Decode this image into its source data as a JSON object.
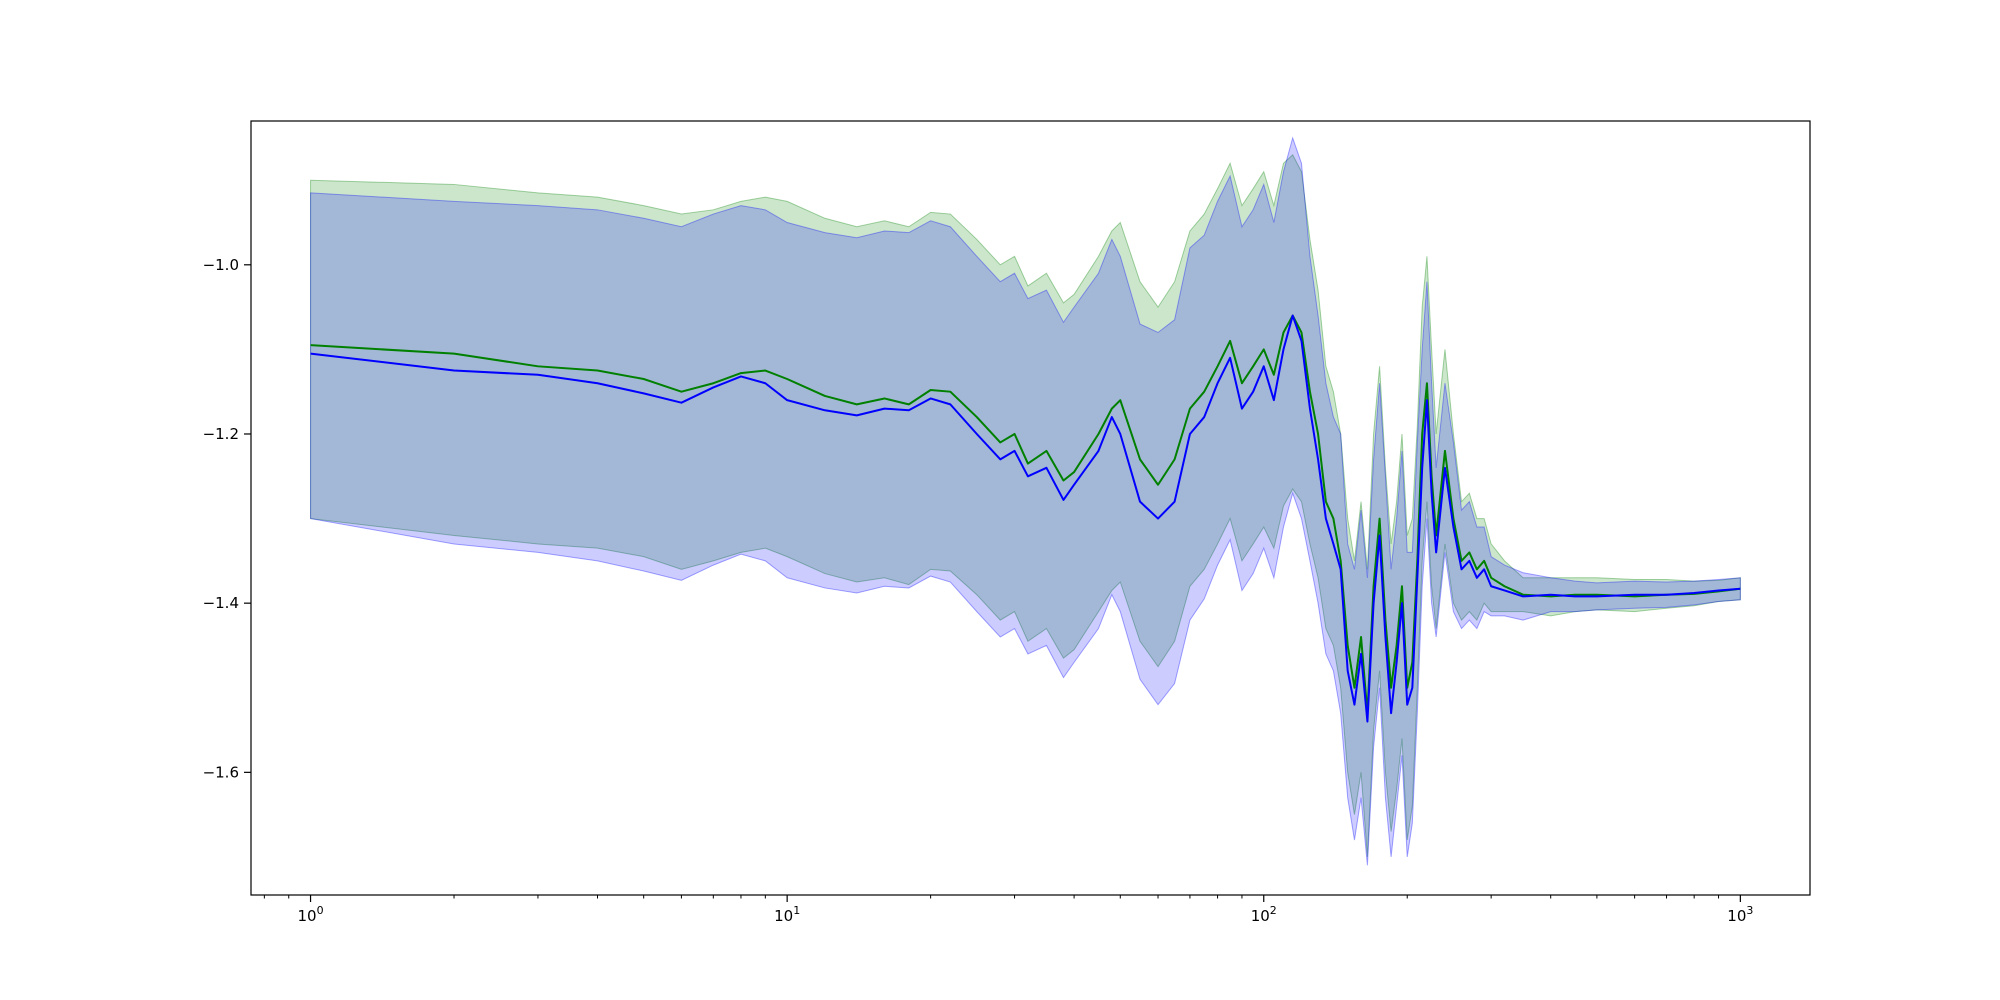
{
  "chart_data": {
    "type": "line",
    "title": "",
    "xlabel": "",
    "ylabel": "",
    "xscale": "log",
    "xlim": [
      0.75,
      1400
    ],
    "ylim": [
      -1.745,
      -0.83
    ],
    "grid": false,
    "legend": "none",
    "x_ticks": [
      {
        "base": "10",
        "exp": "0",
        "value": 1
      },
      {
        "base": "10",
        "exp": "1",
        "value": 10
      },
      {
        "base": "10",
        "exp": "2",
        "value": 100
      },
      {
        "base": "10",
        "exp": "3",
        "value": 1000
      }
    ],
    "y_ticks": [
      {
        "label": "−1.0",
        "value": -1.0
      },
      {
        "label": "−1.2",
        "value": -1.2
      },
      {
        "label": "−1.4",
        "value": -1.4
      },
      {
        "label": "−1.6",
        "value": -1.6
      }
    ],
    "series": [
      {
        "color": "#008000",
        "band_color": "#008000",
        "band_opacity": 0.2,
        "x": [
          1,
          2,
          3,
          4,
          5,
          6,
          7,
          8,
          9,
          10,
          12,
          14,
          16,
          18,
          20,
          22,
          25,
          28,
          30,
          32,
          35,
          38,
          40,
          45,
          48,
          50,
          55,
          60,
          65,
          70,
          75,
          80,
          85,
          90,
          95,
          100,
          105,
          110,
          115,
          120,
          125,
          130,
          135,
          140,
          145,
          150,
          155,
          160,
          165,
          170,
          175,
          180,
          185,
          190,
          195,
          200,
          205,
          210,
          215,
          220,
          225,
          230,
          240,
          250,
          260,
          270,
          280,
          290,
          300,
          320,
          350,
          400,
          450,
          500,
          600,
          700,
          800,
          900,
          1000
        ],
        "y": [
          -1.095,
          -1.105,
          -1.12,
          -1.125,
          -1.135,
          -1.15,
          -1.14,
          -1.128,
          -1.125,
          -1.135,
          -1.155,
          -1.165,
          -1.158,
          -1.165,
          -1.148,
          -1.15,
          -1.18,
          -1.21,
          -1.2,
          -1.235,
          -1.22,
          -1.255,
          -1.245,
          -1.2,
          -1.17,
          -1.16,
          -1.23,
          -1.26,
          -1.23,
          -1.17,
          -1.15,
          -1.12,
          -1.09,
          -1.14,
          -1.12,
          -1.1,
          -1.13,
          -1.08,
          -1.06,
          -1.08,
          -1.15,
          -1.2,
          -1.28,
          -1.3,
          -1.35,
          -1.45,
          -1.5,
          -1.44,
          -1.53,
          -1.38,
          -1.3,
          -1.42,
          -1.5,
          -1.45,
          -1.38,
          -1.5,
          -1.47,
          -1.35,
          -1.2,
          -1.14,
          -1.25,
          -1.32,
          -1.22,
          -1.3,
          -1.35,
          -1.34,
          -1.36,
          -1.35,
          -1.37,
          -1.38,
          -1.39,
          -1.392,
          -1.39,
          -1.39,
          -1.392,
          -1.39,
          -1.389,
          -1.386,
          -1.383
        ],
        "lower": [
          -1.3,
          -1.32,
          -1.33,
          -1.335,
          -1.345,
          -1.36,
          -1.35,
          -1.34,
          -1.335,
          -1.345,
          -1.365,
          -1.375,
          -1.37,
          -1.378,
          -1.36,
          -1.362,
          -1.39,
          -1.42,
          -1.41,
          -1.445,
          -1.43,
          -1.465,
          -1.455,
          -1.41,
          -1.385,
          -1.375,
          -1.445,
          -1.475,
          -1.445,
          -1.38,
          -1.36,
          -1.33,
          -1.3,
          -1.35,
          -1.33,
          -1.31,
          -1.335,
          -1.285,
          -1.265,
          -1.28,
          -1.33,
          -1.37,
          -1.43,
          -1.45,
          -1.5,
          -1.6,
          -1.65,
          -1.6,
          -1.7,
          -1.55,
          -1.48,
          -1.6,
          -1.67,
          -1.62,
          -1.56,
          -1.68,
          -1.64,
          -1.5,
          -1.35,
          -1.28,
          -1.38,
          -1.43,
          -1.33,
          -1.4,
          -1.42,
          -1.41,
          -1.42,
          -1.4,
          -1.41,
          -1.41,
          -1.41,
          -1.415,
          -1.41,
          -1.408,
          -1.41,
          -1.406,
          -1.403,
          -1.398,
          -1.396
        ],
        "upper": [
          -0.9,
          -0.905,
          -0.915,
          -0.92,
          -0.93,
          -0.94,
          -0.935,
          -0.925,
          -0.92,
          -0.925,
          -0.945,
          -0.955,
          -0.948,
          -0.955,
          -0.938,
          -0.94,
          -0.97,
          -1.0,
          -0.99,
          -1.025,
          -1.01,
          -1.045,
          -1.035,
          -0.99,
          -0.96,
          -0.95,
          -1.02,
          -1.05,
          -1.02,
          -0.96,
          -0.94,
          -0.91,
          -0.88,
          -0.93,
          -0.91,
          -0.89,
          -0.93,
          -0.88,
          -0.87,
          -0.89,
          -0.97,
          -1.03,
          -1.12,
          -1.15,
          -1.2,
          -1.3,
          -1.35,
          -1.28,
          -1.36,
          -1.2,
          -1.12,
          -1.24,
          -1.33,
          -1.28,
          -1.2,
          -1.32,
          -1.3,
          -1.19,
          -1.05,
          -0.99,
          -1.1,
          -1.2,
          -1.1,
          -1.2,
          -1.28,
          -1.27,
          -1.3,
          -1.3,
          -1.33,
          -1.35,
          -1.37,
          -1.37,
          -1.37,
          -1.37,
          -1.372,
          -1.372,
          -1.374,
          -1.373,
          -1.37
        ]
      },
      {
        "color": "#0000ff",
        "band_color": "#0000ff",
        "band_opacity": 0.2,
        "x": [
          1,
          2,
          3,
          4,
          5,
          6,
          7,
          8,
          9,
          10,
          12,
          14,
          16,
          18,
          20,
          22,
          25,
          28,
          30,
          32,
          35,
          38,
          40,
          45,
          48,
          50,
          55,
          60,
          65,
          70,
          75,
          80,
          85,
          90,
          95,
          100,
          105,
          110,
          115,
          120,
          125,
          130,
          135,
          140,
          145,
          150,
          155,
          160,
          165,
          170,
          175,
          180,
          185,
          190,
          195,
          200,
          205,
          210,
          215,
          220,
          225,
          230,
          240,
          250,
          260,
          270,
          280,
          290,
          300,
          320,
          350,
          400,
          450,
          500,
          600,
          700,
          800,
          900,
          1000
        ],
        "y": [
          -1.105,
          -1.125,
          -1.13,
          -1.14,
          -1.152,
          -1.163,
          -1.145,
          -1.132,
          -1.14,
          -1.16,
          -1.172,
          -1.178,
          -1.17,
          -1.172,
          -1.158,
          -1.165,
          -1.2,
          -1.23,
          -1.22,
          -1.25,
          -1.24,
          -1.278,
          -1.26,
          -1.22,
          -1.18,
          -1.2,
          -1.28,
          -1.3,
          -1.28,
          -1.2,
          -1.18,
          -1.14,
          -1.11,
          -1.17,
          -1.15,
          -1.12,
          -1.16,
          -1.1,
          -1.06,
          -1.09,
          -1.17,
          -1.23,
          -1.3,
          -1.33,
          -1.36,
          -1.48,
          -1.52,
          -1.46,
          -1.54,
          -1.4,
          -1.32,
          -1.44,
          -1.53,
          -1.47,
          -1.4,
          -1.52,
          -1.5,
          -1.37,
          -1.24,
          -1.16,
          -1.27,
          -1.34,
          -1.24,
          -1.31,
          -1.36,
          -1.35,
          -1.37,
          -1.36,
          -1.38,
          -1.385,
          -1.392,
          -1.39,
          -1.392,
          -1.392,
          -1.39,
          -1.39,
          -1.388,
          -1.385,
          -1.383
        ],
        "lower": [
          -1.3,
          -1.33,
          -1.34,
          -1.35,
          -1.362,
          -1.373,
          -1.355,
          -1.342,
          -1.35,
          -1.37,
          -1.382,
          -1.388,
          -1.38,
          -1.382,
          -1.368,
          -1.375,
          -1.41,
          -1.44,
          -1.43,
          -1.46,
          -1.45,
          -1.488,
          -1.47,
          -1.43,
          -1.39,
          -1.41,
          -1.49,
          -1.52,
          -1.495,
          -1.42,
          -1.395,
          -1.355,
          -1.325,
          -1.385,
          -1.365,
          -1.335,
          -1.37,
          -1.31,
          -1.27,
          -1.3,
          -1.35,
          -1.4,
          -1.46,
          -1.48,
          -1.53,
          -1.63,
          -1.68,
          -1.63,
          -1.71,
          -1.57,
          -1.5,
          -1.63,
          -1.7,
          -1.64,
          -1.58,
          -1.7,
          -1.66,
          -1.53,
          -1.38,
          -1.3,
          -1.4,
          -1.44,
          -1.34,
          -1.41,
          -1.43,
          -1.42,
          -1.43,
          -1.41,
          -1.415,
          -1.415,
          -1.42,
          -1.41,
          -1.41,
          -1.408,
          -1.406,
          -1.405,
          -1.402,
          -1.398,
          -1.396
        ],
        "upper": [
          -0.915,
          -0.925,
          -0.93,
          -0.935,
          -0.945,
          -0.955,
          -0.94,
          -0.93,
          -0.935,
          -0.95,
          -0.962,
          -0.968,
          -0.96,
          -0.962,
          -0.948,
          -0.955,
          -0.99,
          -1.02,
          -1.01,
          -1.04,
          -1.03,
          -1.068,
          -1.05,
          -1.01,
          -0.97,
          -0.99,
          -1.07,
          -1.08,
          -1.065,
          -0.98,
          -0.965,
          -0.925,
          -0.895,
          -0.955,
          -0.935,
          -0.905,
          -0.95,
          -0.89,
          -0.85,
          -0.88,
          -0.99,
          -1.06,
          -1.14,
          -1.18,
          -1.2,
          -1.33,
          -1.36,
          -1.29,
          -1.37,
          -1.23,
          -1.14,
          -1.25,
          -1.36,
          -1.3,
          -1.22,
          -1.34,
          -1.34,
          -1.21,
          -1.1,
          -1.02,
          -1.14,
          -1.24,
          -1.14,
          -1.21,
          -1.29,
          -1.28,
          -1.31,
          -1.31,
          -1.345,
          -1.355,
          -1.364,
          -1.37,
          -1.374,
          -1.376,
          -1.374,
          -1.375,
          -1.374,
          -1.372,
          -1.37
        ]
      }
    ]
  }
}
